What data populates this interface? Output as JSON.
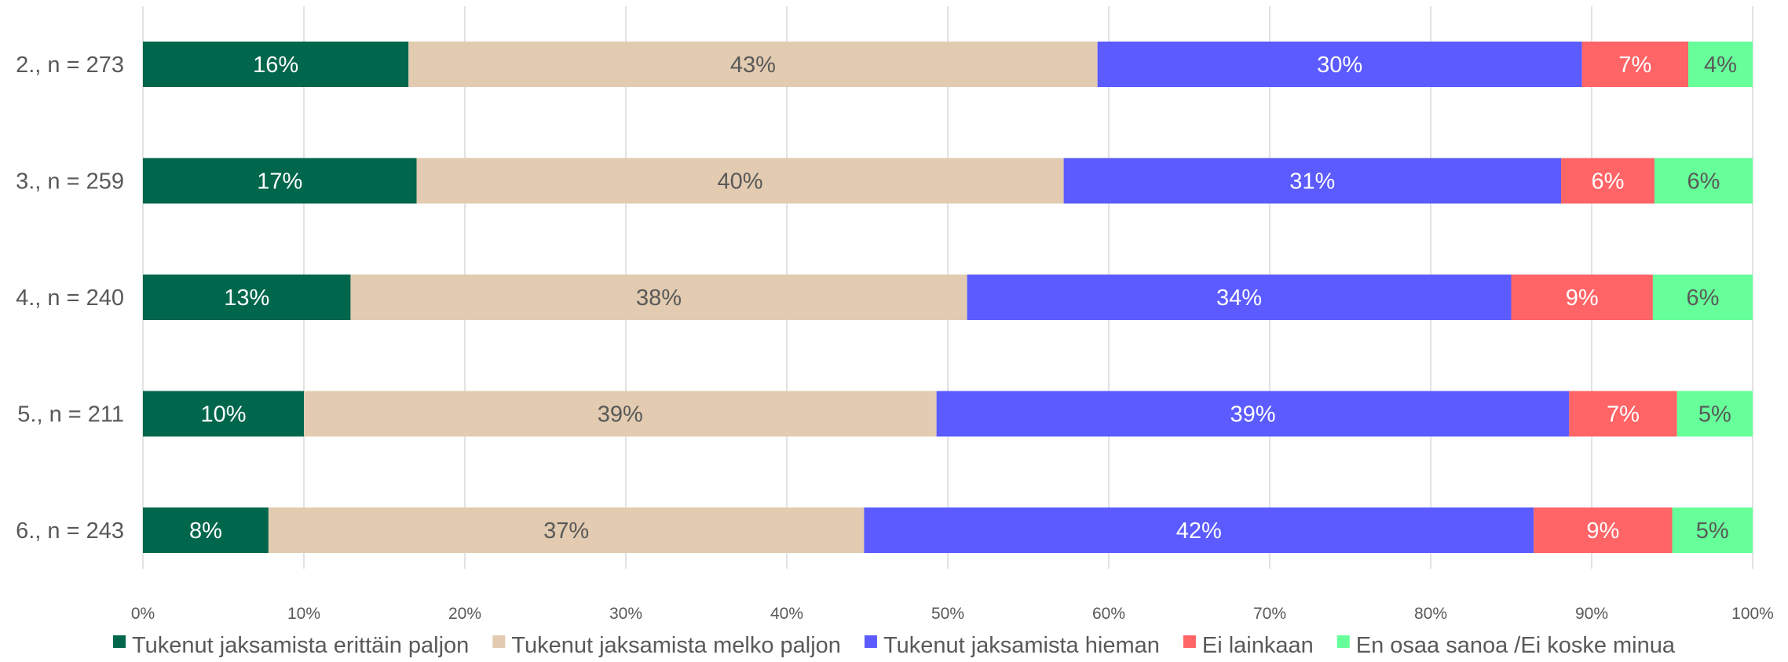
{
  "chart_data": {
    "type": "bar",
    "orientation": "horizontal",
    "stacked": true,
    "normalized": true,
    "categories": [
      "2., n = 273",
      "3., n = 259",
      "4., n = 240",
      "5., n = 211",
      "6., n = 243"
    ],
    "series": [
      {
        "name": "Tukenut jaksamista erittäin paljon",
        "color": "#00664c",
        "label_color": "#ffffff",
        "values": [
          16.5,
          17.0,
          12.9,
          10.0,
          7.8
        ],
        "labels": [
          "16%",
          "17%",
          "13%",
          "10%",
          "8%"
        ]
      },
      {
        "name": "Tukenut jaksamista melko paljon",
        "color": "#e2cbb0",
        "label_color": "#595959",
        "values": [
          42.8,
          40.2,
          38.3,
          39.3,
          37.0
        ],
        "labels": [
          "43%",
          "40%",
          "38%",
          "39%",
          "37%"
        ]
      },
      {
        "name": "Tukenut jaksamista hieman",
        "color": "#5b5bff",
        "label_color": "#ffffff",
        "values": [
          30.1,
          30.9,
          33.8,
          39.3,
          41.6
        ],
        "labels": [
          "30%",
          "31%",
          "34%",
          "39%",
          "42%"
        ]
      },
      {
        "name": "Ei lainkaan",
        "color": "#ff6467",
        "label_color": "#ffffff",
        "values": [
          6.6,
          5.8,
          8.8,
          6.7,
          8.6
        ],
        "labels": [
          "7%",
          "6%",
          "9%",
          "7%",
          "9%"
        ]
      },
      {
        "name": "En osaa sanoa /Ei koske minua",
        "color": "#66ff99",
        "label_color": "#595959",
        "values": [
          4.0,
          6.1,
          6.2,
          4.7,
          5.0
        ],
        "labels": [
          "4%",
          "6%",
          "6%",
          "5%",
          "5%"
        ]
      }
    ],
    "x_ticks": [
      "0%",
      "10%",
      "20%",
      "30%",
      "40%",
      "50%",
      "60%",
      "70%",
      "80%",
      "90%",
      "100%"
    ],
    "xlim": [
      0,
      100
    ],
    "title": "",
    "xlabel": "",
    "ylabel": "",
    "grid": true,
    "legend": "bottom"
  }
}
